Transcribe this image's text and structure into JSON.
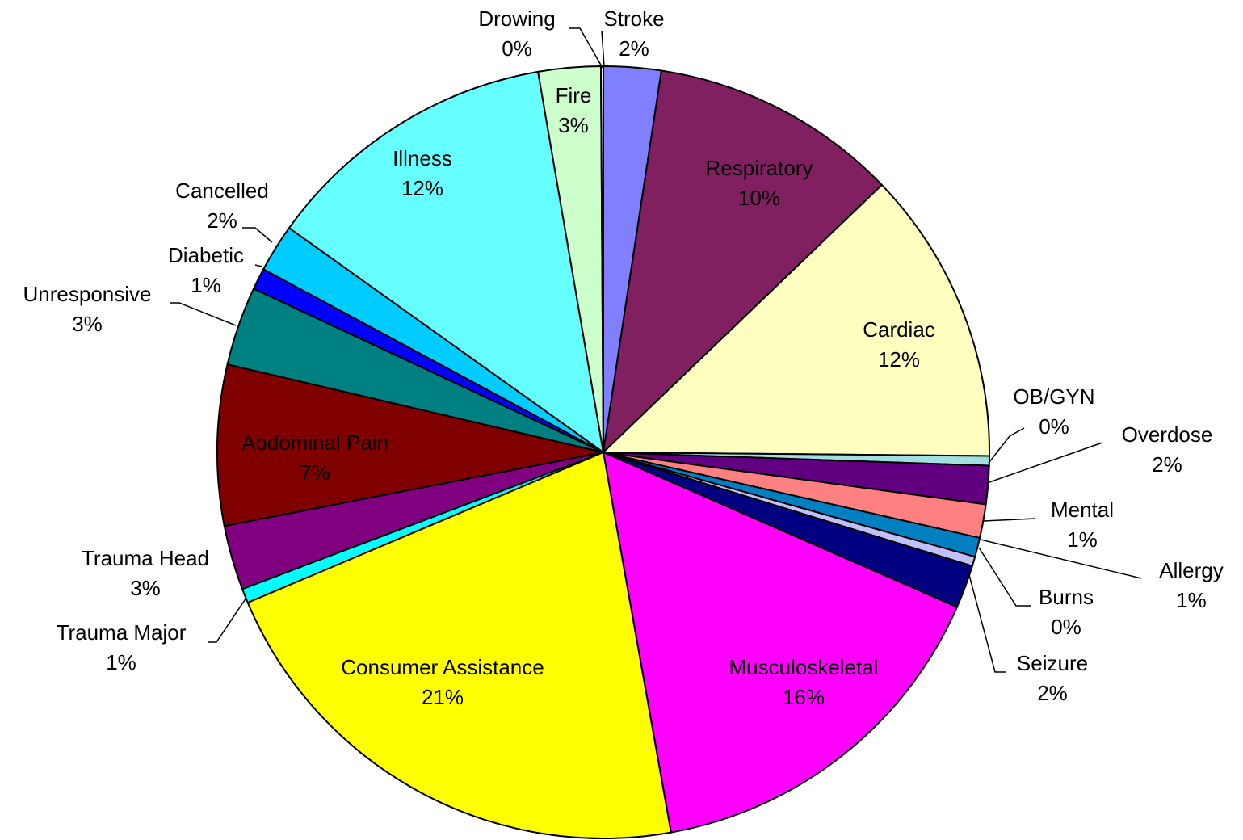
{
  "chart_data": {
    "type": "pie",
    "categories": [
      "Stroke",
      "Respiratory",
      "Cardiac",
      "OB/GYN",
      "Overdose",
      "Mental",
      "Allergy",
      "Burns",
      "Seizure",
      "Musculoskeletal",
      "Consumer Assistance",
      "Trauma Major",
      "Trauma Head",
      "Abdominal Pain",
      "Unresponsive",
      "Diabetic",
      "Cancelled",
      "Illness",
      "Fire",
      "Drowing"
    ],
    "values": [
      2.4,
      10.4,
      12.3,
      0.4,
      1.6,
      1.4,
      0.8,
      0.4,
      1.8,
      15.6,
      21.4,
      0.6,
      2.7,
      6.7,
      3.3,
      0.9,
      2.0,
      12.4,
      2.6,
      0.1
    ],
    "value_labels": [
      "2%",
      "10%",
      "12%",
      "0%",
      "2%",
      "1%",
      "1%",
      "0%",
      "2%",
      "16%",
      "21%",
      "1%",
      "3%",
      "7%",
      "3%",
      "1%",
      "2%",
      "12%",
      "3%",
      "0%"
    ],
    "colors": [
      "#8080ff",
      "#802060",
      "#ffffc0",
      "#a0e0e0",
      "#600080",
      "#ff8080",
      "#0080c0",
      "#c0c0ff",
      "#000080",
      "#ff00ff",
      "#ffff00",
      "#00ffff",
      "#800080",
      "#800000",
      "#008080",
      "#0000ff",
      "#00ccff",
      "#66ffff",
      "#ccffcc",
      "#ffffff"
    ]
  }
}
